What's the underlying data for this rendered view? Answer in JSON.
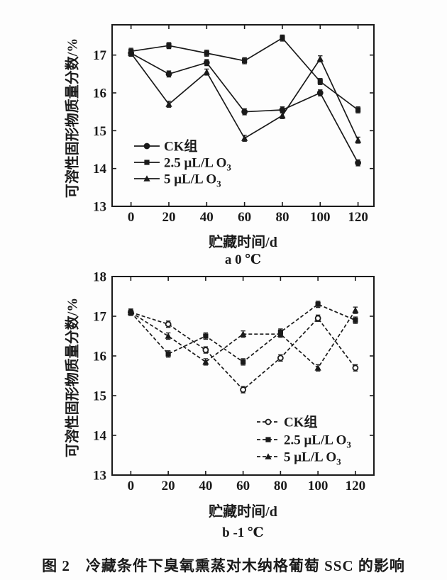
{
  "figure": {
    "caption": "图 2　冷藏条件下臭氧熏蒸对木纳格葡萄 SSC 的影响"
  },
  "chart_data": [
    {
      "type": "line",
      "subtitle": "a 0 ℃",
      "xlabel": "贮藏时间/d",
      "ylabel": "可溶性固形物质量分数/%",
      "x": [
        0,
        20,
        40,
        60,
        80,
        100,
        120
      ],
      "x_ticks": [
        0,
        20,
        40,
        60,
        80,
        100,
        120
      ],
      "y_ticks": [
        13,
        14,
        15,
        16,
        17
      ],
      "xlim": [
        -10,
        128.4
      ],
      "ylim": [
        13,
        17.8
      ],
      "line_style": "solid",
      "grid": false,
      "legend_position": "inside-left-bottom",
      "error_bar": 0.08,
      "line_color": "#1a1a1a",
      "series": [
        {
          "name": "CK组",
          "name_sub": "",
          "marker": "circle",
          "marker_fill": "solid",
          "values": [
            17.05,
            16.5,
            16.8,
            15.5,
            15.55,
            16.0,
            14.15
          ]
        },
        {
          "name": "2.5 μL/L O",
          "name_sub": "3",
          "marker": "square",
          "marker_fill": "solid",
          "values": [
            17.1,
            17.25,
            17.05,
            16.85,
            17.45,
            16.3,
            15.55
          ]
        },
        {
          "name": "5 μL/L O",
          "name_sub": "3",
          "marker": "triangle",
          "marker_fill": "solid",
          "values": [
            17.05,
            15.7,
            16.55,
            14.8,
            15.4,
            16.9,
            14.75
          ]
        }
      ]
    },
    {
      "type": "line",
      "subtitle": "b -1 ℃",
      "xlabel": "贮藏时间/d",
      "ylabel": "可溶性固形物质量分数/%",
      "x": [
        0,
        20,
        40,
        60,
        80,
        100,
        120
      ],
      "x_ticks": [
        0,
        20,
        40,
        60,
        80,
        100,
        120
      ],
      "y_ticks": [
        13,
        14,
        15,
        16,
        17,
        18
      ],
      "xlim": [
        -10,
        129.9
      ],
      "ylim": [
        13,
        18
      ],
      "line_style": "dashed",
      "grid": false,
      "legend_position": "inside-right-bottom",
      "error_bar": 0.08,
      "line_color": "#1a1a1a",
      "series": [
        {
          "name": "CK组",
          "name_sub": "",
          "marker": "circle",
          "marker_fill": "open",
          "values": [
            17.1,
            16.8,
            16.15,
            15.15,
            15.95,
            16.95,
            15.7
          ]
        },
        {
          "name": "2.5 μL/L O",
          "name_sub": "3",
          "marker": "square",
          "marker_fill": "solid",
          "values": [
            17.1,
            16.05,
            16.5,
            15.85,
            16.6,
            17.3,
            16.9
          ]
        },
        {
          "name": "5 μL/L O",
          "name_sub": "3",
          "marker": "triangle",
          "marker_fill": "solid",
          "values": [
            17.1,
            16.5,
            15.85,
            16.55,
            16.55,
            15.7,
            17.15
          ]
        }
      ]
    }
  ]
}
